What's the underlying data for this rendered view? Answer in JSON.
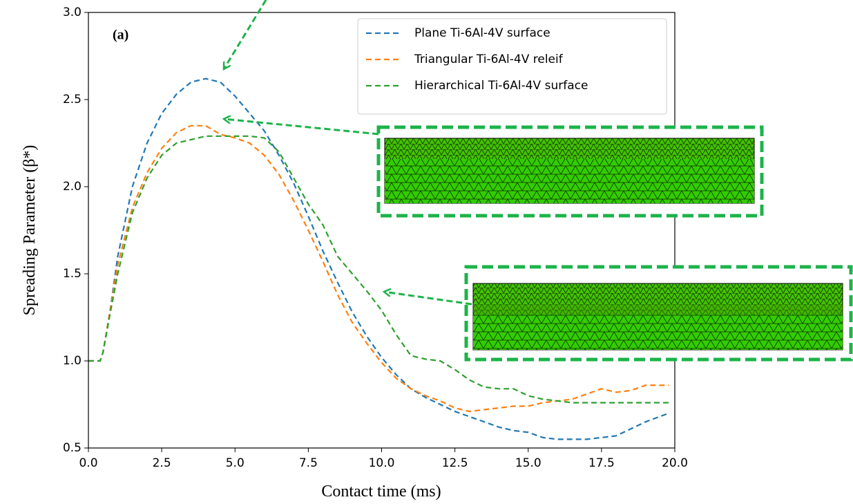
{
  "chart_data": {
    "type": "line",
    "annotation": "(a)",
    "x_label": "Contact time (ms)",
    "y_label": "Spreading Parameter (β*)",
    "x": [
      0,
      0.4,
      0.5,
      0.75,
      1.0,
      1.5,
      2.0,
      2.5,
      3.0,
      3.5,
      4.0,
      4.5,
      5.0,
      5.5,
      6.0,
      6.5,
      7.0,
      7.5,
      8.0,
      8.5,
      9.0,
      9.5,
      10.0,
      10.5,
      11.0,
      11.5,
      12.0,
      12.5,
      13.0,
      13.5,
      14.0,
      14.5,
      15.0,
      15.5,
      16.0,
      16.5,
      17.0,
      17.5,
      18.0,
      18.5,
      19.0,
      19.8
    ],
    "series": [
      {
        "name": "Plane Ti-6Al-4V surface",
        "color": "#1f77b4",
        "values": [
          1.0,
          1.0,
          1.05,
          1.3,
          1.6,
          2.0,
          2.25,
          2.42,
          2.53,
          2.6,
          2.62,
          2.6,
          2.52,
          2.42,
          2.32,
          2.18,
          2.02,
          1.83,
          1.63,
          1.45,
          1.28,
          1.14,
          1.02,
          0.92,
          0.84,
          0.79,
          0.75,
          0.71,
          0.68,
          0.65,
          0.62,
          0.6,
          0.59,
          0.56,
          0.55,
          0.55,
          0.55,
          0.56,
          0.57,
          0.61,
          0.65,
          0.7
        ]
      },
      {
        "name": "Triangular Ti-6Al-4V releif",
        "color": "#ff7f0e",
        "values": [
          1.0,
          1.0,
          1.05,
          1.3,
          1.55,
          1.88,
          2.08,
          2.22,
          2.31,
          2.35,
          2.35,
          2.3,
          2.28,
          2.25,
          2.18,
          2.07,
          1.92,
          1.75,
          1.57,
          1.38,
          1.22,
          1.1,
          0.99,
          0.9,
          0.84,
          0.8,
          0.77,
          0.73,
          0.71,
          0.72,
          0.73,
          0.74,
          0.74,
          0.76,
          0.77,
          0.78,
          0.81,
          0.84,
          0.82,
          0.83,
          0.86,
          0.86
        ]
      },
      {
        "name": "Hierarchical Ti-6Al-4V surface",
        "color": "#2ca02c",
        "values": [
          1.0,
          1.0,
          1.05,
          1.28,
          1.5,
          1.85,
          2.05,
          2.18,
          2.25,
          2.27,
          2.29,
          2.29,
          2.29,
          2.29,
          2.28,
          2.2,
          2.05,
          1.9,
          1.78,
          1.6,
          1.5,
          1.4,
          1.29,
          1.15,
          1.03,
          1.01,
          1.0,
          0.95,
          0.89,
          0.85,
          0.84,
          0.84,
          0.8,
          0.78,
          0.77,
          0.76,
          0.76,
          0.76,
          0.76,
          0.76,
          0.76,
          0.76
        ]
      }
    ],
    "xlim": [
      0,
      20
    ],
    "ylim": [
      0.5,
      3.0
    ],
    "xticks": [
      {
        "value": 0,
        "label": "0.0"
      },
      2.5,
      {
        "value": 5,
        "label": "5.0"
      },
      7.5,
      {
        "value": 10,
        "label": "10.0"
      },
      12.5,
      {
        "value": 15,
        "label": "15.0"
      },
      17.5,
      {
        "value": 20,
        "label": "20.0"
      }
    ],
    "yticks": [
      0.5,
      {
        "value": 1,
        "label": "1.0"
      },
      1.5,
      {
        "value": 2,
        "label": "2.0"
      },
      2.5,
      {
        "value": 3,
        "label": "3.0"
      }
    ],
    "legend": "upper right"
  }
}
